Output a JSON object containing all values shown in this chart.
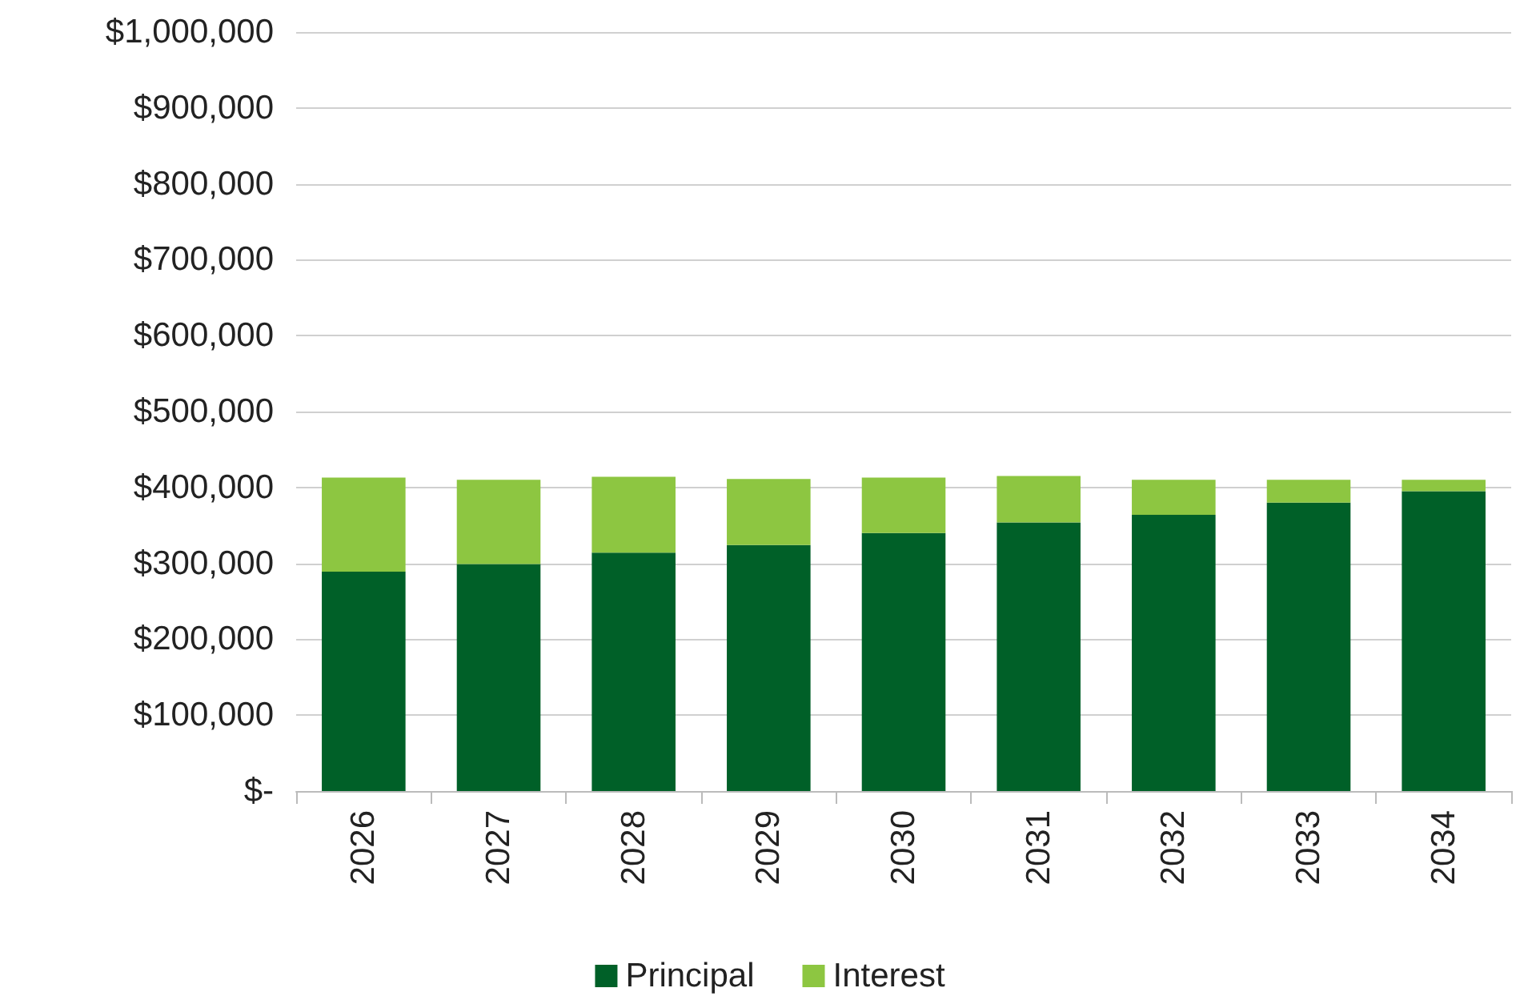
{
  "chart_data": {
    "type": "bar",
    "stacked": true,
    "categories": [
      "2026",
      "2027",
      "2028",
      "2029",
      "2030",
      "2031",
      "2032",
      "2033",
      "2034"
    ],
    "series": [
      {
        "name": "Principal",
        "color": "#006028",
        "values": [
          289000,
          299000,
          314000,
          324000,
          340000,
          354000,
          364000,
          380000,
          395000
        ]
      },
      {
        "name": "Interest",
        "color": "#8dc641",
        "values": [
          124000,
          111000,
          100000,
          87000,
          73000,
          61000,
          46000,
          30000,
          15000
        ]
      }
    ],
    "ylim": [
      0,
      1000000
    ],
    "yticks": [
      {
        "value": 0,
        "label": "$-"
      },
      {
        "value": 100000,
        "label": "$100,000"
      },
      {
        "value": 200000,
        "label": "$200,000"
      },
      {
        "value": 300000,
        "label": "$300,000"
      },
      {
        "value": 400000,
        "label": "$400,000"
      },
      {
        "value": 500000,
        "label": "$500,000"
      },
      {
        "value": 600000,
        "label": "$600,000"
      },
      {
        "value": 700000,
        "label": "$700,000"
      },
      {
        "value": 800000,
        "label": "$800,000"
      },
      {
        "value": 900000,
        "label": "$900,000"
      },
      {
        "value": 1000000,
        "label": "$1,000,000"
      }
    ],
    "grid": "y",
    "legend": "bottom"
  }
}
